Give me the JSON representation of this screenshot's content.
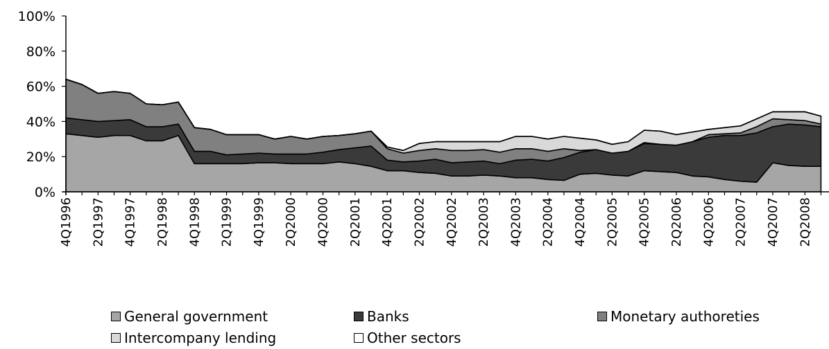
{
  "chart_data": {
    "type": "area",
    "stacked": true,
    "ylim": [
      0,
      100
    ],
    "y_ticks": [
      "0%",
      "20%",
      "40%",
      "60%",
      "80%",
      "100%"
    ],
    "x": [
      "4Q1996",
      "1Q1997",
      "2Q1997",
      "3Q1997",
      "4Q1997",
      "1Q1998",
      "2Q1998",
      "3Q1998",
      "4Q1998",
      "1Q1999",
      "2Q1999",
      "3Q1999",
      "4Q1999",
      "1Q2000",
      "2Q2000",
      "3Q2000",
      "4Q2000",
      "1Q2001",
      "2Q2001",
      "3Q2001",
      "4Q2001",
      "1Q2002",
      "2Q2002",
      "3Q2002",
      "4Q2002",
      "1Q2003",
      "2Q2003",
      "3Q2003",
      "4Q2003",
      "1Q2004",
      "2Q2004",
      "3Q2004",
      "4Q2004",
      "1Q2005",
      "2Q2005",
      "3Q2005",
      "4Q2005",
      "1Q2006",
      "2Q2006",
      "3Q2006",
      "4Q2006",
      "1Q2007",
      "2Q2007",
      "3Q2007",
      "4Q2007",
      "1Q2008",
      "2Q2008",
      "3Q2008"
    ],
    "x_tick_labels": [
      "4Q1996",
      "2Q1997",
      "4Q1997",
      "2Q1998",
      "4Q1998",
      "2Q1999",
      "4Q1999",
      "2Q2000",
      "4Q2000",
      "2Q2001",
      "4Q2001",
      "2Q2002",
      "4Q2002",
      "2Q2003",
      "4Q2003",
      "2Q2004",
      "4Q2004",
      "2Q2005",
      "4Q2005",
      "2Q2006",
      "4Q2006",
      "2Q2007",
      "4Q2007",
      "2Q2008"
    ],
    "grid": false,
    "legend_position": "bottom",
    "series": [
      {
        "name": "General government",
        "color": "#a6a6a6",
        "values": [
          33,
          32,
          31,
          32,
          32,
          29,
          29,
          32,
          16,
          16,
          16,
          16,
          16.5,
          16.5,
          16,
          16,
          16,
          17,
          16,
          14.5,
          12,
          12,
          11,
          10.5,
          9,
          9,
          9.5,
          9,
          8,
          8,
          7,
          6.5,
          10,
          10.5,
          9.5,
          9,
          12,
          11.5,
          11,
          9,
          8.5,
          7,
          6,
          5.5,
          16.5,
          15,
          14.5,
          14.5
        ]
      },
      {
        "name": "Banks",
        "color": "#3a3a3a",
        "values": [
          9,
          9,
          9,
          8.5,
          9,
          8,
          8,
          6.5,
          7,
          7,
          5,
          5.5,
          5.5,
          5,
          5.5,
          5.5,
          6.5,
          7,
          9,
          11.5,
          6,
          5,
          6.5,
          8,
          7.5,
          8,
          8,
          7,
          10,
          10.5,
          10.5,
          13,
          12.5,
          13.5,
          12.5,
          14,
          15.5,
          15.5,
          15.5,
          19.5,
          22.5,
          25,
          26,
          28,
          20.5,
          23.5,
          23.5,
          22.5
        ]
      },
      {
        "name": "Monetary authoreties",
        "color": "#808080",
        "values": [
          22,
          20,
          16,
          16.5,
          15,
          13,
          12.5,
          12.5,
          13.5,
          12.5,
          11.5,
          11,
          10.5,
          8.5,
          10,
          8.5,
          9,
          8,
          8,
          8.5,
          6.5,
          5,
          6,
          6,
          7,
          6.5,
          6.5,
          6.5,
          6.5,
          6,
          5.5,
          5,
          1,
          0,
          0,
          0,
          0.5,
          0,
          0,
          0,
          1.5,
          1,
          1.5,
          3.5,
          4.5,
          2.5,
          2.5,
          1.5
        ]
      },
      {
        "name": "Intercompany lending",
        "color": "#d9d9d9",
        "values": [
          0,
          0,
          0,
          0,
          0,
          0,
          0,
          0,
          0,
          0,
          0,
          0,
          0,
          0,
          0,
          0,
          0,
          0,
          0,
          0,
          1,
          1.5,
          4,
          4,
          5,
          5,
          4.5,
          6,
          7,
          7,
          7,
          7,
          7,
          5.5,
          5,
          5.5,
          7,
          7.5,
          6,
          5.5,
          3,
          3.5,
          4,
          4.5,
          4,
          4.5,
          5,
          4.5
        ]
      },
      {
        "name": "Other sectors",
        "color": "#ffffff",
        "values": [
          0,
          0,
          0,
          0,
          0,
          0,
          0,
          0,
          0,
          0,
          0,
          0,
          0,
          0,
          0,
          0,
          0,
          0,
          0,
          0,
          0,
          0,
          0,
          0,
          0,
          0,
          0,
          0,
          0,
          0,
          0,
          0,
          0,
          0,
          0,
          0,
          0,
          0,
          0,
          0,
          0,
          0,
          0,
          0,
          0,
          0,
          0,
          0
        ]
      }
    ]
  },
  "legend": [
    {
      "label": "General government",
      "color": "#a6a6a6"
    },
    {
      "label": "Banks",
      "color": "#3a3a3a"
    },
    {
      "label": "Monetary authoreties",
      "color": "#808080"
    },
    {
      "label": "Intercompany lending",
      "color": "#d9d9d9"
    },
    {
      "label": "Other sectors",
      "color": "#ffffff"
    }
  ]
}
